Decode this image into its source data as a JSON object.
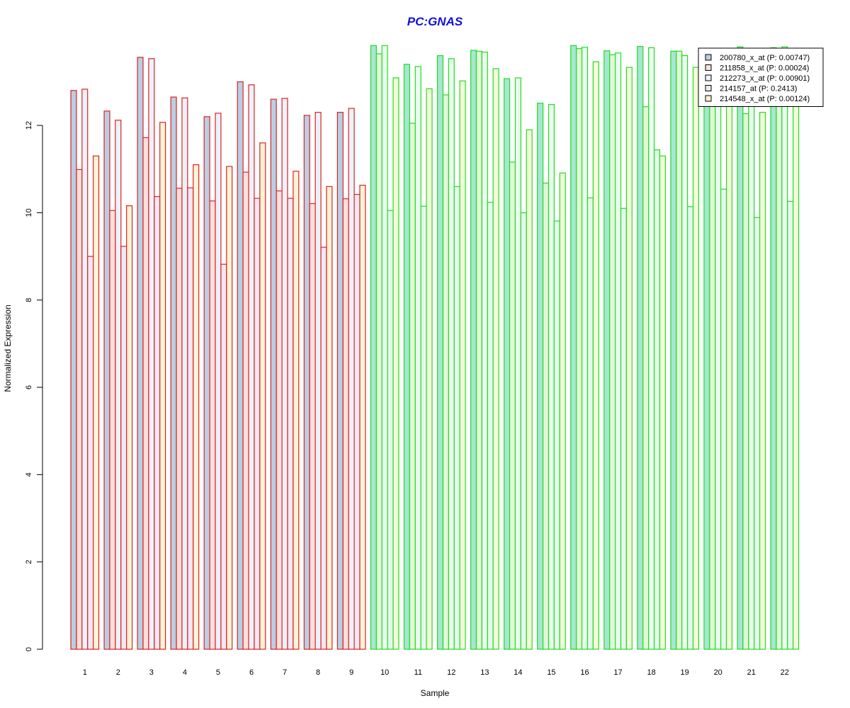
{
  "chart_data": {
    "type": "bar",
    "title": "PC:GNAS",
    "xlabel": "Sample",
    "ylabel": "Normalized Expression",
    "ylim": [
      0,
      13.9
    ],
    "yticks": [
      0,
      2,
      4,
      6,
      8,
      10,
      12
    ],
    "categories": [
      "1",
      "2",
      "3",
      "4",
      "5",
      "6",
      "7",
      "8",
      "9",
      "10",
      "11",
      "12",
      "13",
      "14",
      "15",
      "16",
      "17",
      "18",
      "19",
      "20",
      "21",
      "22"
    ],
    "groups": [
      {
        "samples": [
          "1",
          "2",
          "3",
          "4",
          "5",
          "6",
          "7",
          "8",
          "9"
        ],
        "border_color": "#e02020"
      },
      {
        "samples": [
          "10",
          "11",
          "12",
          "13",
          "14",
          "15",
          "16",
          "17",
          "18",
          "19",
          "20",
          "21",
          "22"
        ],
        "border_color": "#22dd22"
      }
    ],
    "series": [
      {
        "name": "200780_x_at (P: 0.00747)",
        "fill_group1": "#b8cfe3",
        "fill_group2": "#a6e6d2",
        "values": [
          12.8,
          12.33,
          13.56,
          12.65,
          12.2,
          13.0,
          12.6,
          12.23,
          12.3,
          13.83,
          13.4,
          13.6,
          13.72,
          13.07,
          12.51,
          13.83,
          13.71,
          13.81,
          13.7,
          13.75,
          13.8,
          13.78
        ]
      },
      {
        "name": "211858_x_at (P: 0.00024)",
        "fill_group1": "#fde0dc",
        "fill_group2": "#e3f7d8",
        "values": [
          10.99,
          10.05,
          11.72,
          10.56,
          10.27,
          10.93,
          10.5,
          10.21,
          10.32,
          13.64,
          12.05,
          12.7,
          13.7,
          11.16,
          10.68,
          13.76,
          13.62,
          12.43,
          13.7,
          13.68,
          12.27,
          13.5
        ]
      },
      {
        "name": "212273_x_at (P: 0.00901)",
        "fill_group1": "#eaf3fb",
        "fill_group2": "#ebfbf0",
        "values": [
          12.83,
          12.12,
          13.53,
          12.63,
          12.28,
          12.93,
          12.62,
          12.3,
          12.39,
          13.83,
          13.35,
          13.53,
          13.68,
          13.09,
          12.48,
          13.79,
          13.66,
          13.78,
          13.6,
          13.7,
          13.75,
          13.8
        ]
      },
      {
        "name": "214157_at (P: 0.2413)",
        "fill_group1": "#f1e8f6",
        "fill_group2": "#e6f8ee",
        "values": [
          9.0,
          9.23,
          10.37,
          10.57,
          8.82,
          10.33,
          10.33,
          9.21,
          10.42,
          10.05,
          10.15,
          10.6,
          10.24,
          10.0,
          9.81,
          10.34,
          10.1,
          11.44,
          10.14,
          10.54,
          9.89,
          10.26
        ]
      },
      {
        "name": "214548_x_at (P: 0.00124)",
        "fill_group1": "#fdf4d6",
        "fill_group2": "#f3fbd9",
        "values": [
          11.3,
          10.16,
          12.07,
          11.1,
          11.06,
          11.6,
          10.95,
          10.6,
          10.63,
          13.09,
          12.84,
          13.02,
          13.3,
          11.9,
          10.91,
          13.46,
          13.33,
          11.3,
          13.33,
          12.5,
          12.3,
          12.6
        ]
      }
    ],
    "legend_position": "top-right",
    "grid": false
  }
}
